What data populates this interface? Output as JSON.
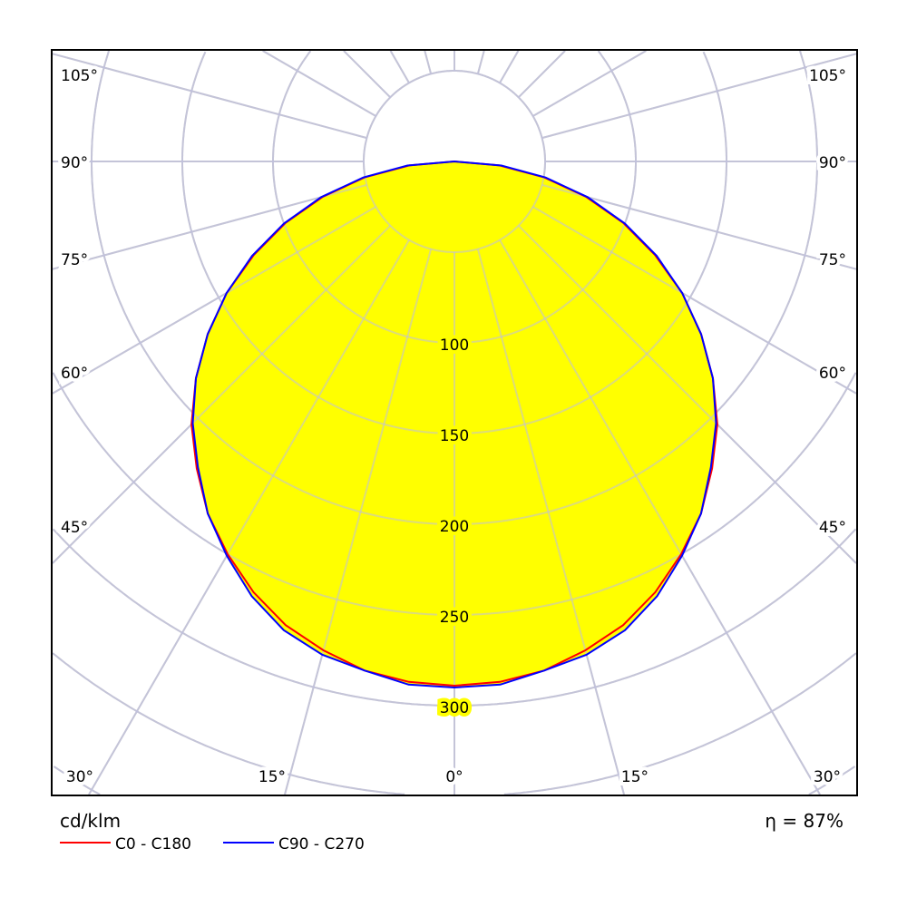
{
  "chart_data": {
    "type": "polar",
    "unit_label": "cd/klm",
    "efficiency_label": "η = 87%",
    "radial_ticks": [
      100,
      150,
      200,
      250,
      300
    ],
    "radial_tick_labels": [
      "100",
      "150",
      "200",
      "250",
      "300"
    ],
    "radial_grid_step": 50,
    "radial_max": 350,
    "angle_grid_step_deg": 15,
    "angle_tick_labels": {
      "sides": [
        "105°",
        "90°",
        "75°",
        "60°",
        "45°"
      ],
      "bottom": [
        "30°",
        "15°",
        "0°",
        "15°",
        "30°"
      ]
    },
    "angles_deg": [
      0,
      5,
      10,
      15,
      20,
      25,
      30,
      35,
      40,
      45,
      50,
      55,
      60,
      65,
      70,
      75,
      80,
      85,
      90
    ],
    "series": [
      {
        "name": "C0 - C180",
        "color": "#ff0000",
        "values": [
          289,
          288,
          285,
          279,
          272,
          262,
          250,
          237,
          221,
          205,
          186,
          166,
          145,
          122,
          99,
          75,
          50,
          25,
          0
        ]
      },
      {
        "name": "C90 - C270",
        "color": "#0000ff",
        "values": [
          290,
          289.5,
          285,
          281.5,
          275,
          264.4,
          251,
          237,
          220,
          204,
          186,
          166,
          145,
          123,
          100,
          76,
          51,
          26,
          0
        ]
      }
    ],
    "fill_color": "#ffff00",
    "grid": true,
    "legend_placement": "bottom-left"
  }
}
